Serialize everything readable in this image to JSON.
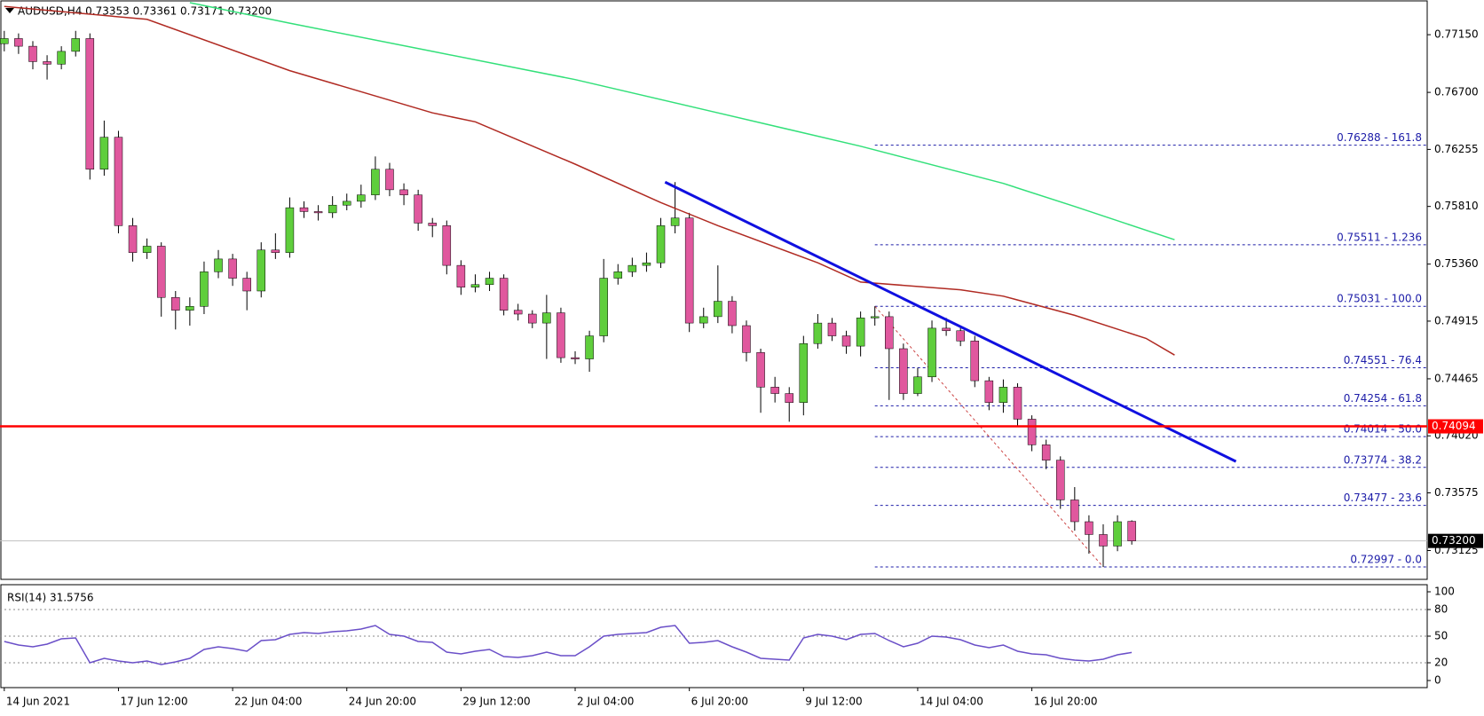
{
  "chart_data": [
    {
      "type": "candlestick",
      "title": "AUDUSD,H4  0.73353 0.73361 0.73171 0.73200",
      "up_color": "#5fce3c",
      "down_color": "#e0589e",
      "wick_color": "#000000",
      "open": [
        0.7708,
        0.7712,
        0.7706,
        0.7694,
        0.7692,
        0.7702,
        0.7712,
        0.761,
        0.7635,
        0.7566,
        0.7545,
        0.755,
        0.751,
        0.75,
        0.7503,
        0.753,
        0.754,
        0.7525,
        0.7515,
        0.7547,
        0.7545,
        0.758,
        0.7577,
        0.7576,
        0.7582,
        0.7585,
        0.759,
        0.761,
        0.7594,
        0.759,
        0.7568,
        0.7566,
        0.7535,
        0.7518,
        0.752,
        0.7525,
        0.75,
        0.7497,
        0.749,
        0.7498,
        0.7463,
        0.7462,
        0.748,
        0.7525,
        0.753,
        0.7535,
        0.7537,
        0.7566,
        0.7572,
        0.749,
        0.7495,
        0.7507,
        0.7488,
        0.7467,
        0.744,
        0.7435,
        0.7428,
        0.7474,
        0.749,
        0.748,
        0.7472,
        0.7494,
        0.7495,
        0.747,
        0.7435,
        0.7448,
        0.7486,
        0.7484,
        0.7476,
        0.7445,
        0.7428,
        0.744,
        0.7415,
        0.7395,
        0.7383,
        0.7352,
        0.7335,
        0.7325,
        0.7316,
        0.73353
      ],
      "high": [
        0.7718,
        0.7716,
        0.771,
        0.7699,
        0.7706,
        0.7718,
        0.7716,
        0.7648,
        0.764,
        0.7572,
        0.7556,
        0.7553,
        0.7515,
        0.751,
        0.7538,
        0.7547,
        0.7544,
        0.753,
        0.7553,
        0.756,
        0.7588,
        0.7585,
        0.7582,
        0.7589,
        0.7591,
        0.7598,
        0.762,
        0.7615,
        0.7599,
        0.7594,
        0.7572,
        0.757,
        0.7539,
        0.7528,
        0.753,
        0.7528,
        0.7505,
        0.75,
        0.7512,
        0.7502,
        0.7468,
        0.7484,
        0.754,
        0.7536,
        0.7541,
        0.7545,
        0.7572,
        0.76,
        0.7576,
        0.7502,
        0.7535,
        0.7511,
        0.7492,
        0.747,
        0.7448,
        0.744,
        0.748,
        0.7497,
        0.7494,
        0.7484,
        0.7499,
        0.75031,
        0.7499,
        0.7474,
        0.7455,
        0.7492,
        0.7494,
        0.7488,
        0.748,
        0.7448,
        0.7446,
        0.7443,
        0.7418,
        0.7399,
        0.7386,
        0.7362,
        0.734,
        0.7333,
        0.734,
        0.73361
      ],
      "low": [
        0.7702,
        0.77,
        0.7688,
        0.768,
        0.7688,
        0.7698,
        0.7602,
        0.7605,
        0.756,
        0.7538,
        0.754,
        0.7495,
        0.7485,
        0.7488,
        0.7497,
        0.7525,
        0.7519,
        0.75,
        0.751,
        0.754,
        0.7541,
        0.7572,
        0.757,
        0.7572,
        0.7578,
        0.758,
        0.7586,
        0.7589,
        0.7582,
        0.7562,
        0.7557,
        0.7528,
        0.7512,
        0.7514,
        0.7515,
        0.7496,
        0.7492,
        0.7486,
        0.7462,
        0.7459,
        0.7458,
        0.7452,
        0.7475,
        0.752,
        0.7526,
        0.753,
        0.7533,
        0.756,
        0.7483,
        0.7486,
        0.749,
        0.7482,
        0.746,
        0.742,
        0.7428,
        0.7413,
        0.7418,
        0.747,
        0.7476,
        0.7466,
        0.7464,
        0.7488,
        0.743,
        0.743,
        0.7433,
        0.7444,
        0.748,
        0.7472,
        0.744,
        0.7422,
        0.742,
        0.741,
        0.739,
        0.7376,
        0.7345,
        0.7328,
        0.731,
        0.72997,
        0.7312,
        0.73171
      ],
      "close": [
        0.7712,
        0.7706,
        0.7694,
        0.7692,
        0.7702,
        0.7712,
        0.761,
        0.7635,
        0.7566,
        0.7545,
        0.755,
        0.751,
        0.75,
        0.7503,
        0.753,
        0.754,
        0.7525,
        0.7515,
        0.7547,
        0.7545,
        0.758,
        0.7577,
        0.7576,
        0.7582,
        0.7585,
        0.759,
        0.761,
        0.7594,
        0.759,
        0.7568,
        0.7566,
        0.7535,
        0.7518,
        0.752,
        0.7525,
        0.75,
        0.7497,
        0.749,
        0.7498,
        0.7463,
        0.7462,
        0.748,
        0.7525,
        0.753,
        0.7535,
        0.7537,
        0.7566,
        0.7572,
        0.749,
        0.7495,
        0.7507,
        0.7488,
        0.7467,
        0.744,
        0.7435,
        0.7428,
        0.7474,
        0.749,
        0.748,
        0.7472,
        0.7494,
        0.7495,
        0.747,
        0.7435,
        0.7448,
        0.7486,
        0.7484,
        0.7476,
        0.7445,
        0.7428,
        0.744,
        0.7415,
        0.7395,
        0.7383,
        0.7352,
        0.7335,
        0.7325,
        0.7316,
        0.7335,
        0.732
      ],
      "series": [
        {
          "color": "#b02a22",
          "x": [
            0,
            10,
            20,
            30,
            33,
            40,
            46,
            50,
            57,
            60,
            67,
            70,
            75,
            80,
            82
          ],
          "values": [
            0.7737,
            0.7727,
            0.7687,
            0.7654,
            0.7647,
            0.7614,
            0.7584,
            0.7566,
            0.7537,
            0.7522,
            0.7516,
            0.7511,
            0.7496,
            0.7478,
            0.7465
          ]
        },
        {
          "color": "#33e07a",
          "x": [
            13,
            20,
            30,
            40,
            50,
            60,
            70,
            75,
            82
          ],
          "values": [
            0.774,
            0.7724,
            0.7702,
            0.768,
            0.7654,
            0.7628,
            0.7599,
            0.7581,
            0.7555
          ]
        }
      ],
      "trendline": {
        "color": "#1010e0",
        "x": [
          46.3,
          86.3
        ],
        "values": [
          0.76,
          0.7382
        ]
      },
      "hline": {
        "color": "#ff0000",
        "value": 0.74094
      },
      "current_price": {
        "value": 0.732,
        "label": "0.73200"
      },
      "fibonacci": {
        "color": "#1c1ca8",
        "diagonal_color": "#cc4444",
        "x": [
          61,
          77
        ],
        "values": [
          0.75031,
          0.72997
        ],
        "levels": [
          {
            "value": 0.76288,
            "label": "0.76288 - 161.8"
          },
          {
            "value": 0.75511,
            "label": "0.75511 - 1.236"
          },
          {
            "value": 0.75031,
            "label": "0.75031 - 100.0"
          },
          {
            "value": 0.74551,
            "label": "0.74551 - 76.4"
          },
          {
            "value": 0.74254,
            "label": "0.74254 -  61.8"
          },
          {
            "value": 0.74014,
            "label": "0.74014 - 50.0"
          },
          {
            "value": 0.73774,
            "label": "0.73774 - 38.2"
          },
          {
            "value": 0.73477,
            "label": "0.73477 - 23.6"
          },
          {
            "value": 0.72997,
            "label": "0.72997 - 0.0"
          }
        ]
      },
      "xlim": [
        -0.3,
        99.7
      ],
      "xticks": [
        {
          "value": 0,
          "label": "14 Jun 2021"
        },
        {
          "value": 8,
          "label": "17 Jun 12:00"
        },
        {
          "value": 16,
          "label": "22 Jun 04:00"
        },
        {
          "value": 24,
          "label": "24 Jun 20:00"
        },
        {
          "value": 32,
          "label": "29 Jun 12:00"
        },
        {
          "value": 40,
          "label": "2 Jul 04:00"
        },
        {
          "value": 48,
          "label": "6 Jul 20:00"
        },
        {
          "value": 56,
          "label": "9 Jul 12:00"
        },
        {
          "value": 64,
          "label": "14 Jul 04:00"
        },
        {
          "value": 72,
          "label": "16 Jul 20:00"
        }
      ],
      "ylim": [
        0.729,
        0.774
      ],
      "yticks": [
        {
          "value": 0.7715,
          "label": "0.77150"
        },
        {
          "value": 0.767,
          "label": "0.76700"
        },
        {
          "value": 0.76255,
          "label": "0.76255"
        },
        {
          "value": 0.7581,
          "label": "0.75810"
        },
        {
          "value": 0.7536,
          "label": "0.75360"
        },
        {
          "value": 0.74915,
          "label": "0.74915"
        },
        {
          "value": 0.74465,
          "label": "0.74465"
        },
        {
          "value": 0.7402,
          "label": "0.74020"
        },
        {
          "value": 0.73575,
          "label": "0.73575"
        },
        {
          "value": 0.73125,
          "label": "0.73125"
        }
      ]
    },
    {
      "type": "line",
      "title": "RSI(14) 31.5756",
      "color": "#6a4fc8",
      "values": [
        44,
        40,
        38,
        41,
        47,
        48,
        20,
        25,
        22,
        20,
        22,
        18,
        21,
        25,
        35,
        38,
        36,
        33,
        45,
        46,
        52,
        54,
        53,
        55,
        56,
        58,
        62,
        52,
        50,
        44,
        43,
        32,
        30,
        33,
        35,
        27,
        26,
        28,
        32,
        28,
        28,
        38,
        50,
        52,
        53,
        54,
        60,
        62,
        42,
        43,
        45,
        38,
        32,
        25,
        24,
        23,
        48,
        52,
        50,
        46,
        52,
        53,
        45,
        38,
        42,
        50,
        49,
        46,
        40,
        37,
        40,
        33,
        30,
        29,
        25,
        23,
        22,
        24,
        29,
        31.5756
      ],
      "ylim": [
        -8,
        107
      ],
      "yticks": [
        0,
        20,
        50,
        80,
        100
      ],
      "levels": [
        80,
        50,
        20
      ]
    }
  ]
}
